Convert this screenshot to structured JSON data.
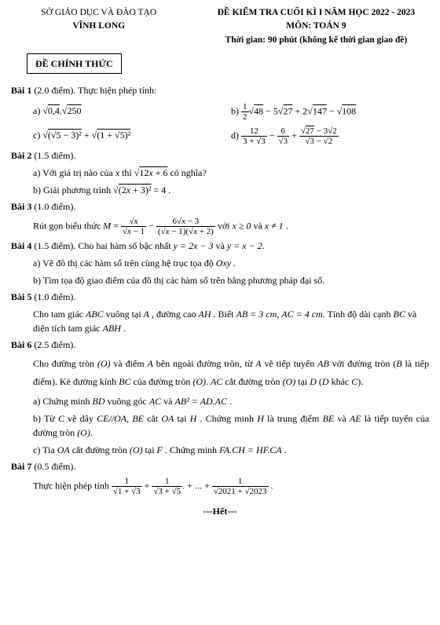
{
  "header": {
    "left_line1": "SỞ GIÁO DỤC VÀ ĐÀO TẠO",
    "left_line2": "VĨNH LONG",
    "official": "ĐỀ CHÍNH THỨC",
    "right_line1": "ĐỀ KIỂM TRA CUỐI KÌ I NĂM HỌC 2022 - 2023",
    "right_line2": "MÔN: TOÁN 9",
    "right_line3": "Thời gian: 90 phút (không kể thời gian giao đề)"
  },
  "bai1": {
    "title": "Bài 1",
    "points": "(2.0 điểm).",
    "desc": "Thực hiện phép tính:",
    "a_label": "a)",
    "b_label": "b)",
    "c_label": "c)",
    "d_label": "d)"
  },
  "bai2": {
    "title": "Bài 2",
    "points": "(1.5 điểm).",
    "a": "a) Với giá trị nào của",
    "a_mid": "x",
    "a_end": "thì",
    "a_tail": "có nghĩa?",
    "b": "b) Giải phương trình"
  },
  "bai3": {
    "title": "Bài 3",
    "points": "(1.0 điểm).",
    "desc": "Rút gọn biểu thức",
    "cond": "với",
    "cond1": "x ≥ 0",
    "and": "và",
    "cond2": "x ≠ 1"
  },
  "bai4": {
    "title": "Bài 4",
    "points": "(1.5 điểm).",
    "desc": "Cho hai hàm số bậc nhất",
    "y1": "y = 2x − 3",
    "and": "và",
    "y2": "y = x − 2",
    "a": "a) Vẽ đồ thị các hàm số trên cùng hệ trục tọa độ",
    "oxy": "Oxy",
    "b": "b) Tìm tọa độ giao điểm của đồ thị các hàm số trên bằng phương pháp đại số."
  },
  "bai5": {
    "title": "Bài 5",
    "points": "(1.0 điểm).",
    "l1": "Cho tam giác",
    "abc": "ABC",
    "l2": "vuông tại",
    "A": "A",
    "l3": ", đường cao",
    "AH": "AH",
    "l4": ". Biết",
    "ab": "AB = 3 cm,",
    "ac": "AC = 4 cm.",
    "l5": "Tính",
    "l6": "độ dài cạnh",
    "BC": "BC",
    "l7": "và diện tích tam giác",
    "ABH": "ABH"
  },
  "bai6": {
    "title": "Bài 6",
    "points": "(2.5 điểm).",
    "p1a": "Cho đường tròn",
    "O": "(O)",
    "p1b": "và điểm",
    "A": "A",
    "p1c": "bên ngoài đường tròn, từ",
    "p1d": "vẽ tiếp tuyến",
    "AB": "AB",
    "p1e": "với",
    "p2a": "đường tròn (",
    "B": "B",
    "p2b": "là tiếp điểm). Kẻ đường kính",
    "BC": "BC",
    "p2c": "của đường tròn",
    "p2d": ".",
    "AC": "AC",
    "p2e": "cắt đường",
    "p3a": "tròn",
    "p3b": "tại",
    "D": "D",
    "p3c": "(",
    "p3d": "khác",
    "C": "C",
    "p3e": ").",
    "a": "a) Chứng minh",
    "BD": "BD",
    "a2": "vuông góc",
    "a3": "và",
    "ab2": "AB² = AD.AC",
    "b": "b) Từ",
    "b2": "vẽ dây",
    "ce": "CE//OA",
    "b3": ",",
    "BE": "BE",
    "b4": "cắt",
    "OA": "OA",
    "b5": "tại",
    "H": "H",
    "b6": ". Chứng minh",
    "b7": "là trung điểm",
    "b8": "và",
    "AE": "AE",
    "b9": "là tiếp tuyến của đường tròn",
    "c": "c) Tia",
    "c2": "cắt đường tròn",
    "c3": "tại",
    "F": "F",
    "c4": ". Chứng minh",
    "fach": "FA.CH = HF.CA"
  },
  "bai7": {
    "title": "Bài 7",
    "points": "(0.5 điểm).",
    "desc": "Thực hiện phép tính"
  },
  "footer": "---Hết---"
}
